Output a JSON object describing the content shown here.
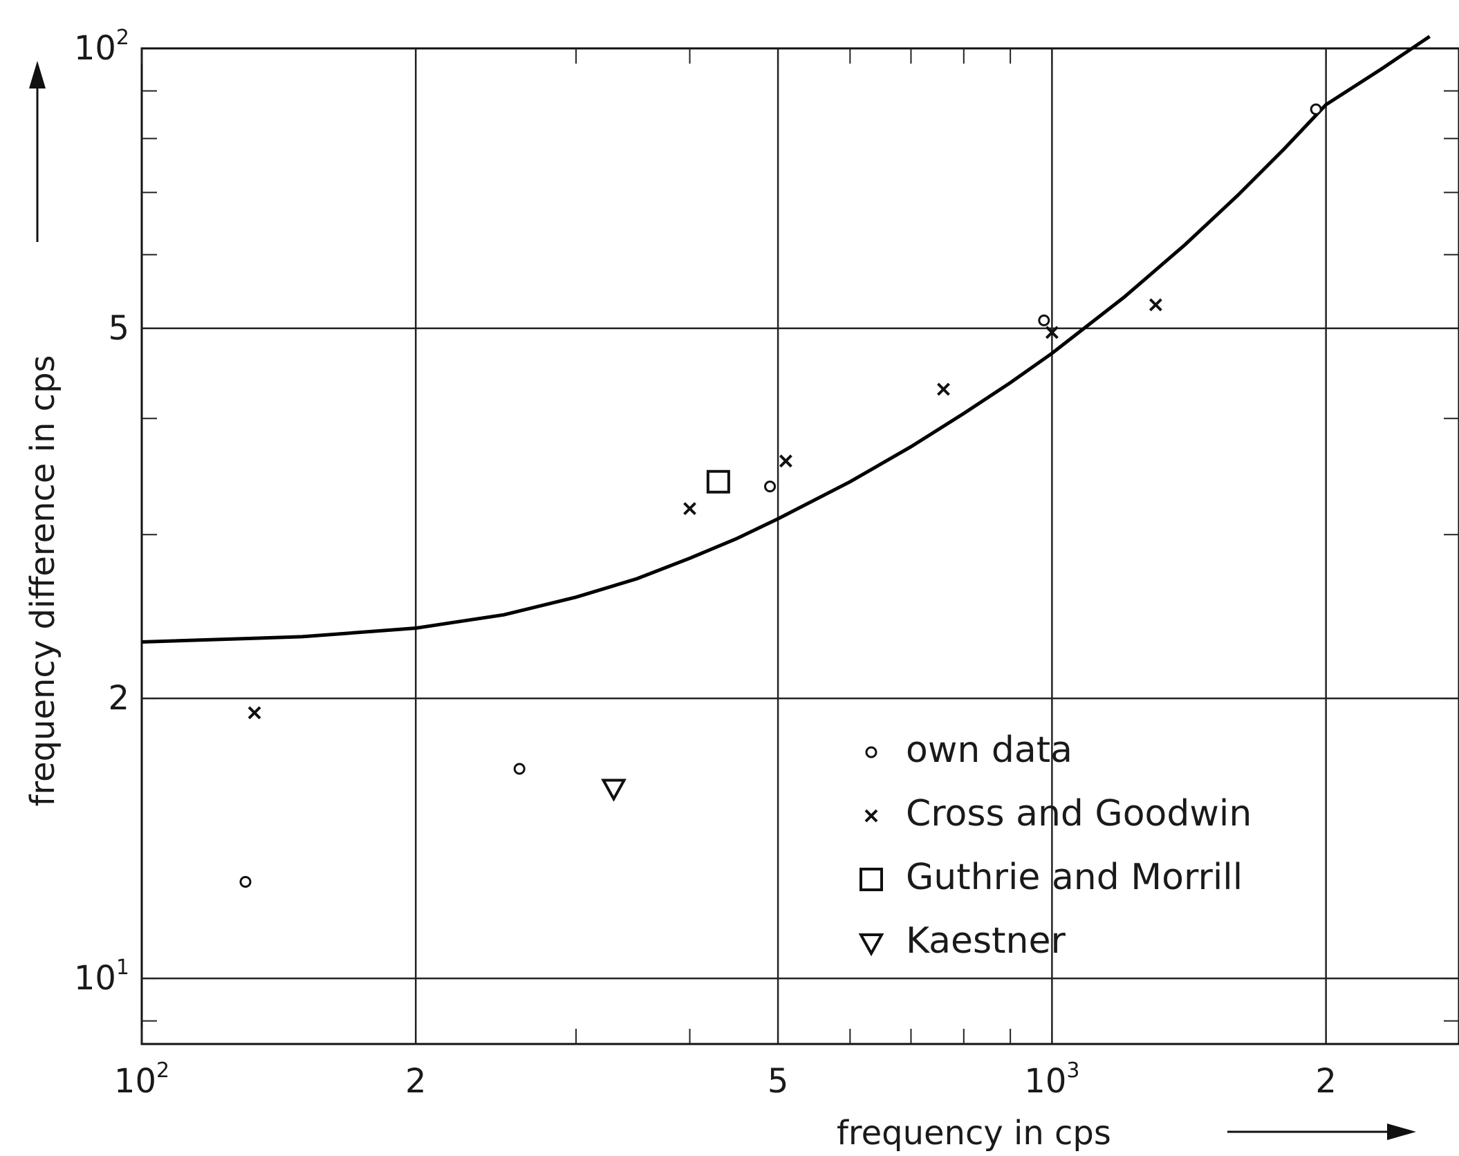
{
  "chart_data": {
    "type": "scatter",
    "title": "",
    "xlabel": "frequency in cps",
    "ylabel": "frequency difference in cps",
    "xscale": "log",
    "yscale": "log",
    "xlim": [
      100,
      2800
    ],
    "ylim": [
      8.5,
      100
    ],
    "grid": true,
    "legend_position": "bottom-right",
    "x_ticks": [
      {
        "value": 100,
        "base": "10",
        "exp": "2"
      },
      {
        "value": 200,
        "base": "2",
        "exp": ""
      },
      {
        "value": 500,
        "base": "5",
        "exp": ""
      },
      {
        "value": 1000,
        "base": "10",
        "exp": "3"
      },
      {
        "value": 2000,
        "base": "2",
        "exp": ""
      }
    ],
    "y_ticks": [
      {
        "value": 10,
        "base": "10",
        "exp": "1"
      },
      {
        "value": 20,
        "base": "2",
        "exp": ""
      },
      {
        "value": 50,
        "base": "5",
        "exp": ""
      },
      {
        "value": 100,
        "base": "10",
        "exp": "2"
      }
    ],
    "curve": {
      "x": [
        100,
        150,
        200,
        250,
        300,
        350,
        400,
        450,
        500,
        600,
        700,
        800,
        900,
        1000,
        1200,
        1400,
        1600,
        1800,
        2000,
        2300,
        2600
      ],
      "y": [
        23.0,
        23.3,
        23.8,
        24.6,
        25.7,
        26.9,
        28.3,
        29.7,
        31.2,
        34.2,
        37.3,
        40.5,
        43.7,
        47.0,
        54.0,
        61.5,
        69.5,
        78.0,
        87.0,
        95.0,
        103.0
      ]
    },
    "series": [
      {
        "name": "own data",
        "marker": "circle",
        "x": [
          130,
          260,
          490,
          980,
          1950
        ],
        "y": [
          12.7,
          16.8,
          33.8,
          51.0,
          86.0
        ]
      },
      {
        "name": "Cross and Goodwin",
        "marker": "x",
        "x": [
          133,
          400,
          510,
          760,
          1000,
          1300
        ],
        "y": [
          19.3,
          32.0,
          36.0,
          43.0,
          49.5,
          53.0
        ]
      },
      {
        "name": "Guthrie and Morrill",
        "marker": "square",
        "x": [
          430
        ],
        "y": [
          34.2
        ]
      },
      {
        "name": "Kaestner",
        "marker": "triangle",
        "x": [
          330
        ],
        "y": [
          16.0
        ]
      }
    ]
  }
}
